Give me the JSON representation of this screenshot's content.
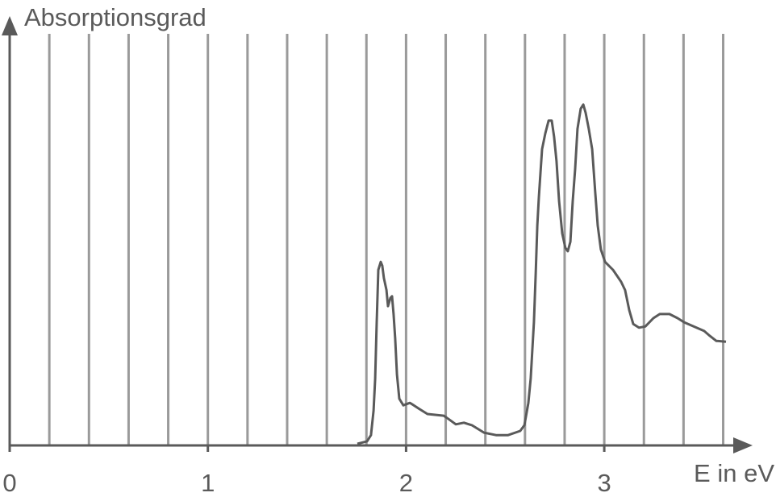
{
  "chart_data": {
    "type": "line",
    "title": "",
    "ylabel": "Absorptionsgrad",
    "xlabel": "E in eV",
    "xlim": [
      0,
      3.6
    ],
    "ylim": [
      0,
      100
    ],
    "x_tick_labels": [
      "0",
      "1",
      "2",
      "3"
    ],
    "x_ticks": [
      0,
      1,
      2,
      3
    ],
    "grid": {
      "vertical": true,
      "horizontal": false,
      "step": 0.2
    },
    "colors": {
      "axis": "#5a5a5a",
      "grid": "#9a9a9a",
      "line": "#5a5a5a",
      "text": "#5a5a5a"
    },
    "series": [
      {
        "x": [
          1.754,
          1.803,
          1.823,
          1.836,
          1.844,
          1.852,
          1.86,
          1.872,
          1.88,
          1.888,
          1.901,
          1.909,
          1.921,
          1.929,
          1.937,
          1.945,
          1.954,
          1.966,
          1.986,
          2.019,
          2.039,
          2.068,
          2.108,
          2.19,
          2.214,
          2.251,
          2.292,
          2.332,
          2.393,
          2.454,
          2.515,
          2.576,
          2.597,
          2.617,
          2.629,
          2.645,
          2.654,
          2.662,
          2.67,
          2.678,
          2.686,
          2.703,
          2.719,
          2.735,
          2.747,
          2.759,
          2.772,
          2.788,
          2.804,
          2.816,
          2.829,
          2.841,
          2.853,
          2.865,
          2.881,
          2.894,
          2.906,
          2.922,
          2.939,
          2.955,
          2.967,
          2.983,
          3.004,
          3.044,
          3.085,
          3.105,
          3.126,
          3.146,
          3.175,
          3.207,
          3.248,
          3.28,
          3.329,
          3.37,
          3.403,
          3.451,
          3.504,
          3.533,
          3.565,
          3.614
        ],
        "y": [
          0.4,
          1.0,
          2.5,
          8.4,
          16.2,
          29.8,
          42.5,
          44.4,
          43.5,
          40.5,
          37.6,
          33.7,
          35.7,
          36.1,
          31.8,
          25.9,
          17.2,
          11.3,
          9.7,
          10.3,
          9.7,
          8.8,
          7.6,
          7.2,
          6.4,
          5.1,
          5.5,
          4.9,
          3.1,
          2.5,
          2.5,
          3.5,
          4.9,
          10.3,
          16.2,
          29.8,
          41.5,
          53.2,
          60.0,
          65.9,
          71.7,
          75.6,
          78.6,
          78.6,
          74.7,
          68.8,
          59.1,
          51.3,
          47.8,
          47.0,
          49.3,
          59.1,
          66.9,
          76.6,
          81.5,
          82.5,
          80.5,
          76.6,
          71.7,
          61.0,
          53.2,
          47.4,
          44.4,
          42.5,
          39.6,
          37.6,
          32.7,
          29.4,
          28.5,
          28.8,
          30.8,
          31.8,
          31.8,
          30.8,
          29.8,
          28.8,
          27.7,
          26.5,
          25.3,
          25.1
        ]
      }
    ]
  }
}
